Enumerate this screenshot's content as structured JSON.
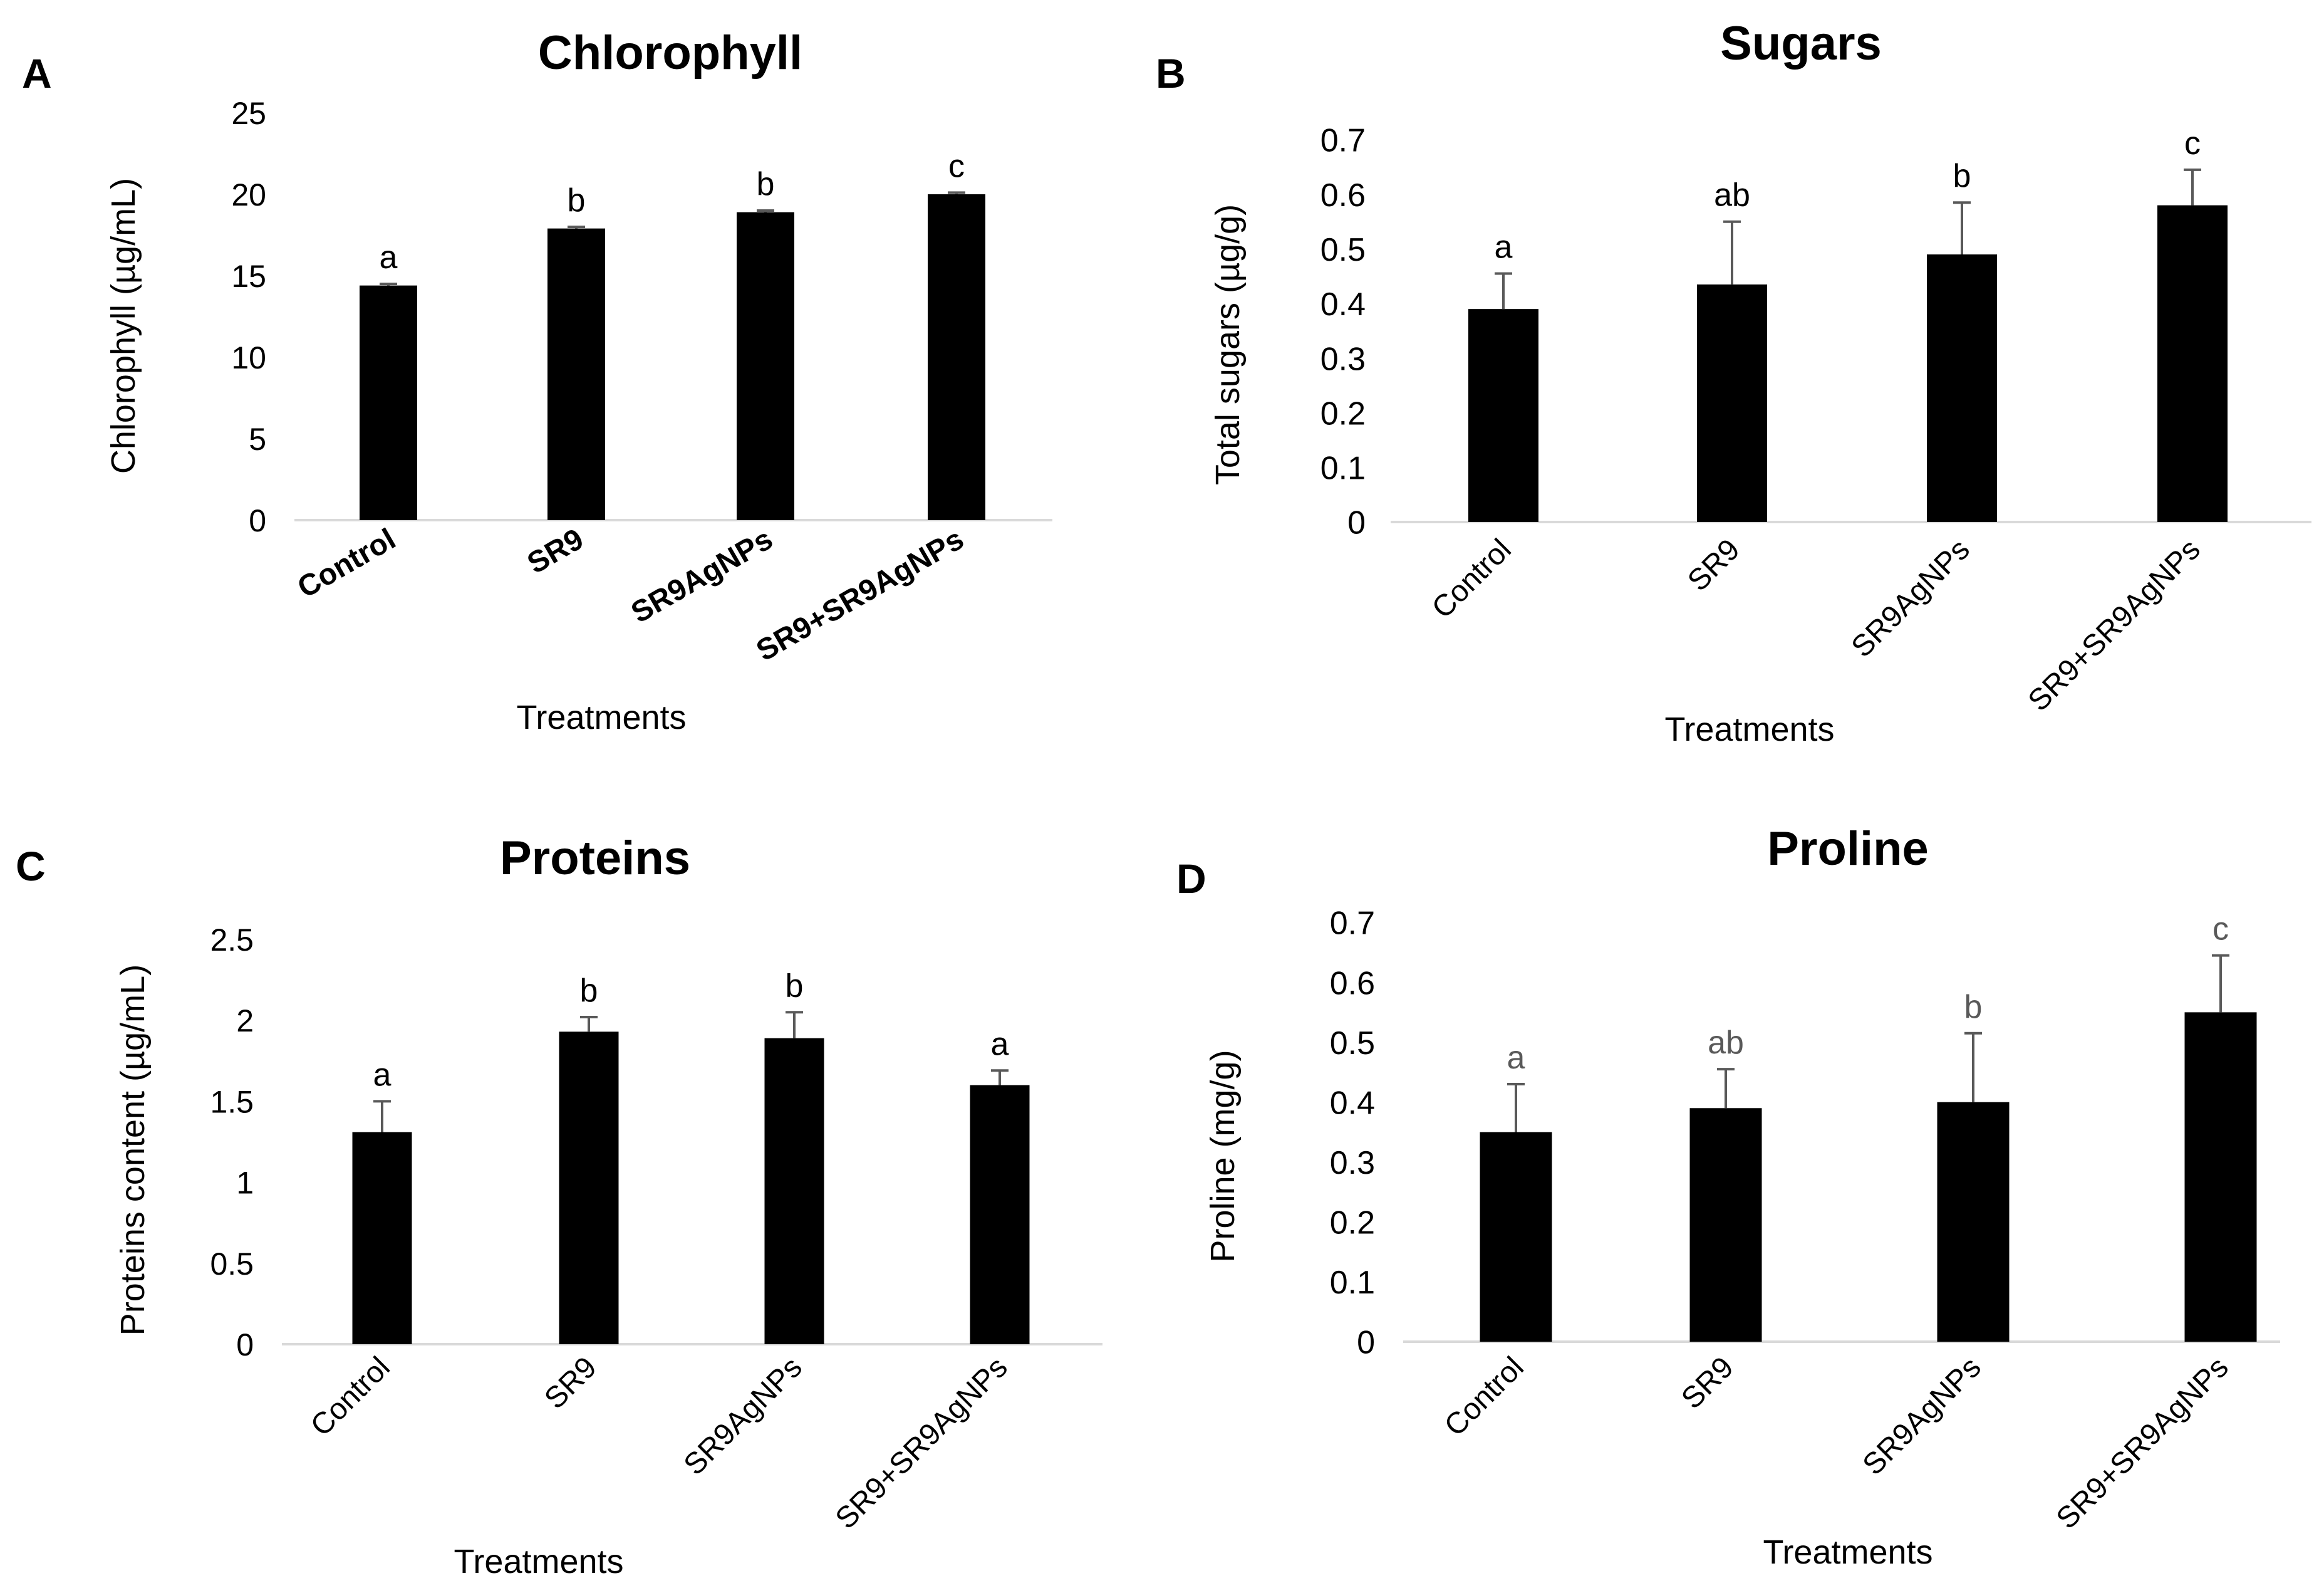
{
  "chart_data": [
    {
      "panel_label": "A",
      "type": "bar",
      "title": "Chlorophyll",
      "xlabel": "Treatments",
      "ylabel": "Chlorophyll  (µg/mL)",
      "categories": [
        "Control",
        "SR9",
        "SR9AgNPs",
        "SR9+SR9AgNPs"
      ],
      "values": [
        14.4,
        17.9,
        18.9,
        20.0
      ],
      "errors": [
        0.1,
        0.1,
        0.1,
        0.1
      ],
      "letters": [
        "a",
        "b",
        "b",
        "c"
      ],
      "ylim": [
        0,
        25
      ],
      "yticks": [
        "0",
        "5",
        "10",
        "15",
        "20",
        "25"
      ],
      "grid": false,
      "bar_color": "#000000",
      "error_color": "#595959"
    },
    {
      "panel_label": "B",
      "type": "bar",
      "title": "Sugars",
      "xlabel": "Treatments",
      "ylabel": "Total sugars  (µg/g)",
      "categories": [
        "Control",
        "SR9",
        "SR9AgNPs",
        "SR9+SR9AgNPs"
      ],
      "values": [
        0.39,
        0.435,
        0.49,
        0.58
      ],
      "errors": [
        0.065,
        0.115,
        0.095,
        0.065
      ],
      "letters": [
        "a",
        "ab",
        "b",
        "c"
      ],
      "ylim": [
        0,
        0.7
      ],
      "yticks": [
        "0",
        "0.1",
        "0.2",
        "0.3",
        "0.4",
        "0.5",
        "0.6",
        "0.7"
      ],
      "grid": false,
      "bar_color": "#000000",
      "error_color": "#595959"
    },
    {
      "panel_label": "C",
      "type": "bar",
      "title": "Proteins",
      "xlabel": "Treatments",
      "ylabel": "Proteins content  (µg/mL)",
      "categories": [
        "Control",
        "SR9",
        "SR9AgNPs",
        "SR9+SR9AgNPs"
      ],
      "values": [
        1.31,
        1.93,
        1.89,
        1.6
      ],
      "errors": [
        0.19,
        0.09,
        0.16,
        0.09
      ],
      "letters": [
        "a",
        "b",
        "b",
        "a"
      ],
      "ylim": [
        0,
        2.5
      ],
      "yticks": [
        "0",
        "0.5",
        "1",
        "1.5",
        "2",
        "2.5"
      ],
      "grid": false,
      "bar_color": "#000000",
      "error_color": "#595959"
    },
    {
      "panel_label": "D",
      "type": "bar",
      "title": "Proline",
      "xlabel": "Treatments",
      "ylabel": "Proline (mg/g)",
      "categories": [
        "Control",
        "SR9",
        "SR9AgNPs",
        "SR9+SR9AgNPs"
      ],
      "values": [
        0.35,
        0.39,
        0.4,
        0.55
      ],
      "errors": [
        0.08,
        0.065,
        0.115,
        0.095
      ],
      "letters": [
        "a",
        "ab",
        "b",
        "c"
      ],
      "ylim": [
        0,
        0.7
      ],
      "yticks": [
        "0",
        "0.1",
        "0.2",
        "0.3",
        "0.4",
        "0.5",
        "0.6",
        "0.7"
      ],
      "grid": false,
      "bar_color": "#000000",
      "error_color": "#595959",
      "letter_color": "#595959"
    }
  ]
}
